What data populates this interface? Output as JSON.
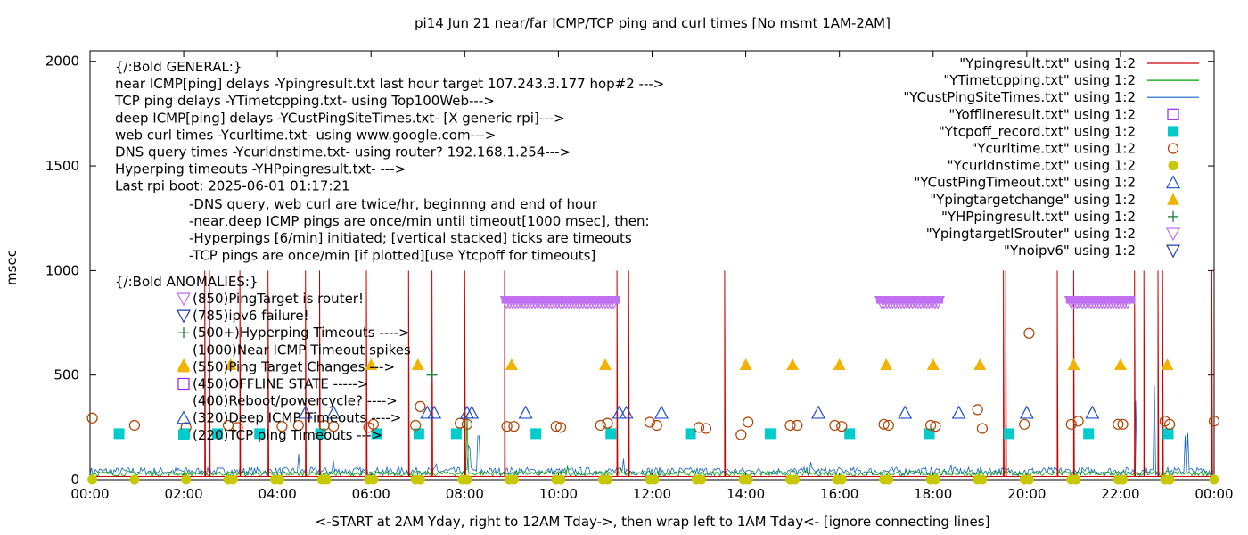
{
  "chart_data": {
    "type": "line",
    "title": "pi14 Jun 21  near/far ICMP/TCP ping and curl times [No msmt 1AM-2AM]",
    "xlabel": "<-START at 2AM Yday, right to 12AM Tday->, then wrap left to 1AM Tday<- [ignore connecting lines]",
    "ylabel": "msec",
    "xlim": [
      "00:00",
      "24:00"
    ],
    "ylim": [
      0,
      2050
    ],
    "x_ticks": [
      "00:00",
      "02:00",
      "04:00",
      "06:00",
      "08:00",
      "10:00",
      "12:00",
      "14:00",
      "16:00",
      "18:00",
      "20:00",
      "22:00",
      "00:00"
    ],
    "y_ticks": [
      "0",
      "500",
      "1000",
      "1500",
      "2000"
    ],
    "legend_position": "top-right",
    "legend": [
      {
        "label": "\"Ypingresult.txt\" using 1:2",
        "style": "line",
        "color": "#cc0000"
      },
      {
        "label": "\"YTimetcpping.txt\" using 1:2",
        "style": "line",
        "color": "#00a000"
      },
      {
        "label": "\"YCustPingSiteTimes.txt\" using 1:2",
        "style": "line",
        "color": "#1565c0"
      },
      {
        "label": "\"Yofflineresult.txt\" using 1:2",
        "style": "square-open",
        "color": "#a020f0"
      },
      {
        "label": "\"Ytcpoff_record.txt\" using 1:2",
        "style": "square-filled",
        "color": "#00cccc"
      },
      {
        "label": "\"Ycurltime.txt\" using 1:2",
        "style": "circle-open",
        "color": "#b04000"
      },
      {
        "label": "\"Ycurldnstime.txt\" using 1:2",
        "style": "circle-filled",
        "color": "#c8c800"
      },
      {
        "label": "\"YCustPingTimeout.txt\" using 1:2",
        "style": "triangle-open",
        "color": "#1f4fc8"
      },
      {
        "label": "\"Ypingtargetchange\" using 1:2",
        "style": "triangle-filled",
        "color": "#f0b400"
      },
      {
        "label": "\"YHPpingresult.txt\" using 1:2",
        "style": "plus",
        "color": "#1e7a3a"
      },
      {
        "label": "\"YpingtargetISrouter\" using 1:2",
        "style": "triangle-down-open",
        "color": "#c070f0"
      },
      {
        "label": "\"Ynoipv6\" using 1:2",
        "style": "triangle-down-open",
        "color": "#1f3f9f"
      }
    ],
    "annotations_general": [
      "{/:Bold GENERAL:}",
      "near ICMP[ping] delays -Ypingresult.txt last hour target 107.243.3.177 hop#2 --->",
      "TCP ping delays -YTimetcpping.txt- using Top100Web--->",
      "deep ICMP[ping] delays -YCustPingSiteTimes.txt- [X generic rpi]--->",
      "web curl times -Ycurltime.txt- using www.google.com--->",
      "DNS query times -Ycurldnstime.txt- using router? 192.168.1.254--->",
      "Hyperping timeouts -YHPpingresult.txt- --->",
      "Last rpi boot: 2025-06-01 01:17:21"
    ],
    "annotations_notes": [
      "-DNS query, web curl are twice/hr, beginnng and end of hour",
      "-near,deep ICMP pings are once/min until timeout[1000 msec], then:",
      "  -Hyperpings [6/min] initiated; [vertical stacked] ticks are timeouts",
      "-TCP pings are once/min [if plotted][use Ytcpoff for timeouts]"
    ],
    "annotations_anomalies_title": "{/:Bold ANOMALIES:}",
    "annotations_anomalies": [
      "(850)PingTarget is router!",
      "(785)ipv6 failure!",
      "(500+)Hyperping Timeouts ---->",
      "(1000)Near ICMP Timeout spikes",
      "(550)Ping Target Changes --->",
      "(450)OFFLINE STATE ----->",
      "(400)Reboot/powercycle? ---->",
      "(320)Deep ICMP Timeouts ---->",
      "(220)TCP ping Timeouts --->"
    ],
    "series": [
      {
        "name": "Ypingresult.txt",
        "type": "spikes",
        "y": 1000,
        "x": [
          2.45,
          2.55,
          3.2,
          3.8,
          4.6,
          4.9,
          5.9,
          6.8,
          7.3,
          8.0,
          8.85,
          11.25,
          11.5,
          13.55,
          19.5,
          19.55,
          20.65,
          21.0,
          22.3,
          22.5,
          22.8,
          22.9,
          23.95
        ],
        "baseline": 15
      },
      {
        "name": "YTimetcpping.txt",
        "type": "noise",
        "baseline": 30
      },
      {
        "name": "YCustPingSiteTimes.txt",
        "type": "noise",
        "baseline": 40
      },
      {
        "name": "Ytcpoff_record.txt",
        "type": "points",
        "y": 220,
        "x": [
          0.62,
          2.02,
          2.72,
          3.62,
          4.92,
          6.12,
          7.02,
          7.82,
          9.52,
          11.12,
          12.82,
          14.52,
          16.22,
          17.92,
          19.62,
          21.32,
          23.02
        ]
      },
      {
        "name": "Ycurltime.txt",
        "type": "points",
        "x": [
          0.05,
          0.95,
          2.05,
          2.95,
          3.15,
          4.1,
          4.45,
          5.0,
          5.2,
          5.95,
          6.05,
          6.95,
          7.05,
          7.9,
          8.05,
          8.9,
          9.05,
          9.95,
          10.05,
          10.9,
          11.05,
          11.95,
          12.1,
          13.0,
          13.15,
          13.9,
          14.05,
          14.95,
          15.1,
          15.9,
          16.05,
          16.95,
          17.05,
          17.95,
          18.05,
          18.95,
          19.05,
          19.95,
          20.05,
          20.95,
          21.1,
          21.95,
          22.05,
          22.95,
          23.05,
          24.0
        ],
        "y": [
          295,
          260,
          250,
          260,
          250,
          255,
          260,
          260,
          255,
          250,
          265,
          260,
          350,
          270,
          265,
          255,
          255,
          255,
          250,
          260,
          270,
          275,
          260,
          250,
          245,
          215,
          275,
          260,
          260,
          260,
          255,
          265,
          260,
          260,
          255,
          335,
          245,
          265,
          700,
          265,
          280,
          265,
          265,
          280,
          265,
          280
        ]
      },
      {
        "name": "Ycurldnstime.txt",
        "type": "points",
        "y": 0,
        "x": [
          0.05,
          0.95,
          2.05,
          2.95,
          3.05,
          3.95,
          4.05,
          4.95,
          5.05,
          5.95,
          6.05,
          6.95,
          7.05,
          7.95,
          8.05,
          8.95,
          9.05,
          9.95,
          10.05,
          10.95,
          11.05,
          11.95,
          12.05,
          12.95,
          13.05,
          13.95,
          14.05,
          14.95,
          15.05,
          15.95,
          16.05,
          16.95,
          17.05,
          17.95,
          18.05,
          18.95,
          19.05,
          19.95,
          20.05,
          20.95,
          21.05,
          21.95,
          22.05,
          22.95,
          23.05,
          24.0
        ]
      },
      {
        "name": "YCustPingTimeout.txt",
        "type": "points",
        "y": 320,
        "x": [
          4.6,
          5.2,
          7.2,
          7.35,
          8.05,
          8.15,
          9.3,
          11.3,
          11.45,
          12.2,
          15.55,
          17.4,
          18.55,
          20.0,
          21.4
        ]
      },
      {
        "name": "Ypingtargetchange",
        "type": "points",
        "y": 550,
        "x": [
          2.0,
          3.0,
          6.0,
          7.0,
          9.0,
          11.0,
          14.0,
          15.0,
          16.0,
          17.0,
          18.0,
          19.0,
          21.0,
          22.0,
          23.0
        ]
      },
      {
        "name": "YHPpingresult.txt",
        "type": "points",
        "y": 500,
        "x": [
          7.3
        ]
      },
      {
        "name": "YpingtargetISrouter",
        "type": "bands",
        "y": 850,
        "ranges": [
          [
            8.9,
            11.2
          ],
          [
            16.9,
            18.1
          ],
          [
            20.95,
            22.2
          ]
        ]
      }
    ]
  },
  "colors": {
    "red": "#cc0000",
    "green": "#00a000",
    "blue": "#1565c0",
    "purple": "#a020f0",
    "cyan": "#00cccc",
    "brown": "#b04000",
    "olive": "#c8c800",
    "navy": "#1f4fc8",
    "orange": "#f0b400",
    "darkgreen": "#1e7a3a",
    "lavender": "#c070f0",
    "darknavy": "#1f3f9f"
  }
}
